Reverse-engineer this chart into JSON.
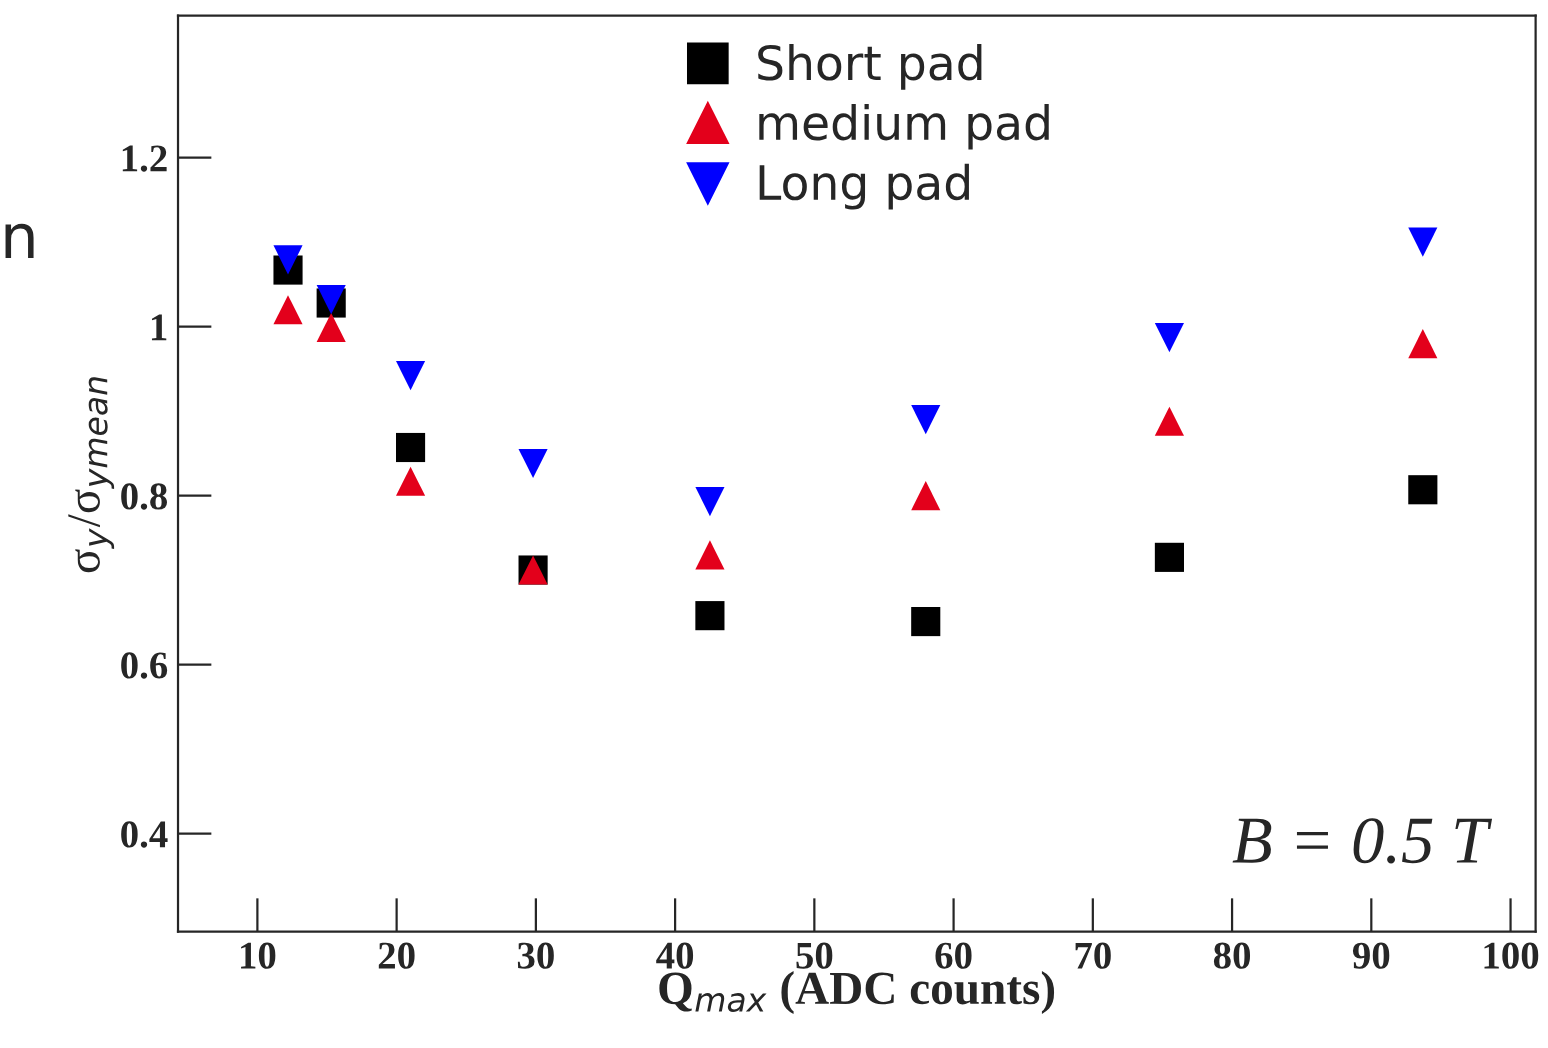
{
  "chart_data": {
    "type": "scatter",
    "xlabel": "Q$_{max}$ (ADC counts)",
    "ylabel": "σ$_{y}$/σ$_{ymean}$",
    "x": [
      12.2,
      15.3,
      21,
      29.8,
      42.5,
      58,
      75.5,
      93.7
    ],
    "series": [
      {
        "name": "Short pad",
        "color": "#000000",
        "marker": "square",
        "values": [
          1.067,
          1.028,
          0.857,
          0.712,
          0.658,
          0.651,
          0.727,
          0.807
        ]
      },
      {
        "name": "medium pad",
        "color": "#e3001b",
        "marker": "triangle",
        "values": [
          1.02,
          0.999,
          0.817,
          0.712,
          0.73,
          0.8,
          0.888,
          0.98
        ]
      },
      {
        "name": "Long pad",
        "color": "#0000ff",
        "marker": "triangle_down",
        "values": [
          1.079,
          1.032,
          0.942,
          0.838,
          0.793,
          0.89,
          0.987,
          1.1
        ]
      }
    ],
    "xlim": [
      4.3,
      101.8
    ],
    "xticks": [
      10,
      20,
      30,
      40,
      50,
      60,
      70,
      80,
      90,
      100
    ],
    "ylim": [
      0.284,
      1.368
    ],
    "yticks": [
      0.4,
      0.6,
      0.8,
      1,
      1.2
    ],
    "legend": "top",
    "grid": false,
    "annotations": [
      "B = 0.5 T",
      "n"
    ]
  }
}
